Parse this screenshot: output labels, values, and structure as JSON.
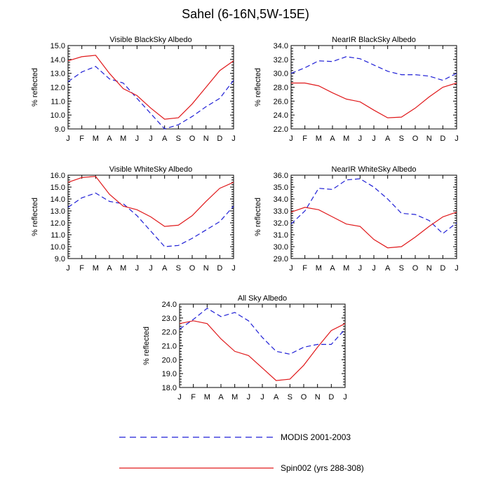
{
  "title": "Sahel (6-16N,5W-15E)",
  "legend": [
    {
      "name": "MODIS 2001-2003",
      "color": "#1f1fd6",
      "dash": true
    },
    {
      "name": "Spin002 (yrs 288-308)",
      "color": "#e0191b",
      "dash": false
    }
  ],
  "chart_data": [
    {
      "type": "line",
      "title": "Visible BlackSky Albedo",
      "ylabel": "% reflected",
      "x": [
        "J",
        "F",
        "M",
        "A",
        "M",
        "J",
        "J",
        "A",
        "S",
        "O",
        "N",
        "D",
        "J"
      ],
      "ylim": [
        9.0,
        15.0
      ],
      "yticks": [
        "9.0",
        "10.0",
        "11.0",
        "12.0",
        "13.0",
        "14.0",
        "15.0"
      ],
      "series": [
        {
          "name": "MODIS 2001-2003",
          "values": [
            12.4,
            13.1,
            13.5,
            12.6,
            12.3,
            11.2,
            10.1,
            9.0,
            9.3,
            9.9,
            10.6,
            11.2,
            12.5
          ]
        },
        {
          "name": "Spin002 (yrs 288-308)",
          "values": [
            13.9,
            14.2,
            14.3,
            13.0,
            11.9,
            11.4,
            10.5,
            9.7,
            9.8,
            10.8,
            12.0,
            13.2,
            13.9
          ]
        }
      ]
    },
    {
      "type": "line",
      "title": "NearIR BlackSky Albedo",
      "ylabel": "% reflected",
      "x": [
        "J",
        "F",
        "M",
        "A",
        "M",
        "J",
        "J",
        "A",
        "S",
        "O",
        "N",
        "D",
        "J"
      ],
      "ylim": [
        22.0,
        34.0
      ],
      "yticks": [
        "22.0",
        "24.0",
        "26.0",
        "28.0",
        "30.0",
        "32.0",
        "34.0"
      ],
      "series": [
        {
          "name": "MODIS 2001-2003",
          "values": [
            30.0,
            30.8,
            31.8,
            31.7,
            32.4,
            32.1,
            31.2,
            30.3,
            29.8,
            29.8,
            29.6,
            29.0,
            30.0
          ]
        },
        {
          "name": "Spin002 (yrs 288-308)",
          "values": [
            28.6,
            28.6,
            28.2,
            27.2,
            26.3,
            25.9,
            24.7,
            23.6,
            23.7,
            25.0,
            26.6,
            28.0,
            28.6
          ]
        }
      ]
    },
    {
      "type": "line",
      "title": "Visible WhiteSky Albedo",
      "ylabel": "% reflected",
      "x": [
        "J",
        "F",
        "M",
        "A",
        "M",
        "J",
        "J",
        "A",
        "S",
        "O",
        "N",
        "D",
        "J"
      ],
      "ylim": [
        9.0,
        16.0
      ],
      "yticks": [
        "9.0",
        "10.0",
        "11.0",
        "12.0",
        "13.0",
        "14.0",
        "15.0",
        "16.0"
      ],
      "series": [
        {
          "name": "MODIS 2001-2003",
          "values": [
            13.3,
            14.1,
            14.5,
            13.8,
            13.6,
            12.6,
            11.3,
            10.0,
            10.1,
            10.7,
            11.4,
            12.1,
            13.4
          ]
        },
        {
          "name": "Spin002 (yrs 288-308)",
          "values": [
            15.4,
            15.8,
            15.9,
            14.4,
            13.4,
            13.1,
            12.5,
            11.7,
            11.8,
            12.6,
            13.8,
            14.9,
            15.4
          ]
        }
      ]
    },
    {
      "type": "line",
      "title": "NearIR WhiteSky Albedo",
      "ylabel": "% reflected",
      "x": [
        "J",
        "F",
        "M",
        "A",
        "M",
        "J",
        "J",
        "A",
        "S",
        "O",
        "N",
        "D",
        "J"
      ],
      "ylim": [
        29.0,
        36.0
      ],
      "yticks": [
        "29.0",
        "30.0",
        "31.0",
        "32.0",
        "33.0",
        "34.0",
        "35.0",
        "36.0"
      ],
      "series": [
        {
          "name": "MODIS 2001-2003",
          "values": [
            31.9,
            33.0,
            34.9,
            34.8,
            35.6,
            35.7,
            35.0,
            34.0,
            32.8,
            32.7,
            32.2,
            31.1,
            32.0
          ]
        },
        {
          "name": "Spin002 (yrs 288-308)",
          "values": [
            32.9,
            33.3,
            33.1,
            32.5,
            31.9,
            31.7,
            30.6,
            29.9,
            30.0,
            30.8,
            31.7,
            32.5,
            32.9
          ]
        }
      ]
    },
    {
      "type": "line",
      "title": "All Sky Albedo",
      "ylabel": "% reflected",
      "x": [
        "J",
        "F",
        "M",
        "A",
        "M",
        "J",
        "J",
        "A",
        "S",
        "O",
        "N",
        "D",
        "J"
      ],
      "ylim": [
        18.0,
        24.0
      ],
      "yticks": [
        "18.0",
        "19.0",
        "20.0",
        "21.0",
        "22.0",
        "23.0",
        "24.0"
      ],
      "series": [
        {
          "name": "MODIS 2001-2003",
          "values": [
            22.2,
            22.9,
            23.7,
            23.1,
            23.4,
            22.8,
            21.6,
            20.6,
            20.4,
            20.9,
            21.1,
            21.1,
            22.2
          ]
        },
        {
          "name": "Spin002 (yrs 288-308)",
          "values": [
            22.6,
            22.8,
            22.6,
            21.5,
            20.6,
            20.3,
            19.4,
            18.5,
            18.6,
            19.6,
            20.9,
            22.1,
            22.6
          ]
        }
      ]
    }
  ]
}
